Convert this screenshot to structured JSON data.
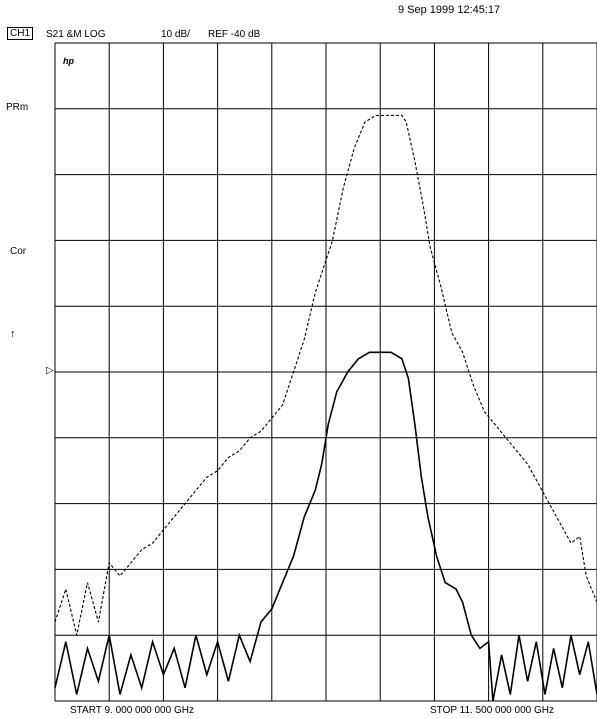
{
  "timestamp": "9 Sep 1999  12:45:17",
  "header": {
    "channel": "CH1",
    "measurement": "S21 &M LOG",
    "scale": "10 dB/",
    "reference": "REF -40 dB"
  },
  "annotations": {
    "logo": "hp",
    "prm": "PRm",
    "cor": "Cor",
    "arrow": "↑",
    "ref_marker": "▷"
  },
  "footer": {
    "start": "START  9. 000  000  000  GHz",
    "stop": "STOP 11. 500  000  000  GHz"
  },
  "chart_data": {
    "type": "line",
    "title": "",
    "xlabel": "",
    "ylabel": "",
    "x_unit": "GHz",
    "xlim": [
      9.0,
      11.5
    ],
    "ylim": [
      -100,
      0
    ],
    "y_reference_db": -40,
    "y_scale_db_per_div": 10,
    "grid": true,
    "divisions": {
      "x": 10,
      "y": 10
    },
    "series": [
      {
        "style": "dashed",
        "points": [
          [
            9.0,
            -88
          ],
          [
            9.05,
            -83
          ],
          [
            9.1,
            -90
          ],
          [
            9.15,
            -82
          ],
          [
            9.2,
            -88
          ],
          [
            9.25,
            -79
          ],
          [
            9.3,
            -81
          ],
          [
            9.35,
            -79
          ],
          [
            9.4,
            -77
          ],
          [
            9.45,
            -76
          ],
          [
            9.5,
            -74
          ],
          [
            9.55,
            -72
          ],
          [
            9.6,
            -70
          ],
          [
            9.65,
            -68
          ],
          [
            9.7,
            -66
          ],
          [
            9.75,
            -65
          ],
          [
            9.8,
            -63
          ],
          [
            9.85,
            -62
          ],
          [
            9.9,
            -60
          ],
          [
            9.95,
            -59
          ],
          [
            10.0,
            -57
          ],
          [
            10.05,
            -55
          ],
          [
            10.1,
            -50
          ],
          [
            10.15,
            -45
          ],
          [
            10.2,
            -38
          ],
          [
            10.25,
            -33
          ],
          [
            10.28,
            -30
          ],
          [
            10.33,
            -22
          ],
          [
            10.38,
            -16
          ],
          [
            10.43,
            -12
          ],
          [
            10.48,
            -11
          ],
          [
            10.55,
            -11
          ],
          [
            10.6,
            -11
          ],
          [
            10.62,
            -12
          ],
          [
            10.66,
            -18
          ],
          [
            10.7,
            -25
          ],
          [
            10.73,
            -31
          ],
          [
            10.78,
            -37
          ],
          [
            10.83,
            -44
          ],
          [
            10.88,
            -47
          ],
          [
            10.93,
            -52
          ],
          [
            10.98,
            -56
          ],
          [
            11.03,
            -58
          ],
          [
            11.08,
            -60
          ],
          [
            11.13,
            -62
          ],
          [
            11.18,
            -64
          ],
          [
            11.23,
            -67
          ],
          [
            11.28,
            -70
          ],
          [
            11.33,
            -73
          ],
          [
            11.38,
            -76
          ],
          [
            11.42,
            -75
          ],
          [
            11.45,
            -81
          ],
          [
            11.5,
            -85
          ]
        ]
      },
      {
        "style": "solid",
        "points": [
          [
            9.0,
            -98
          ],
          [
            9.05,
            -91
          ],
          [
            9.1,
            -99
          ],
          [
            9.15,
            -92
          ],
          [
            9.2,
            -97
          ],
          [
            9.25,
            -90
          ],
          [
            9.3,
            -99
          ],
          [
            9.35,
            -93
          ],
          [
            9.4,
            -98
          ],
          [
            9.45,
            -91
          ],
          [
            9.5,
            -96
          ],
          [
            9.55,
            -92
          ],
          [
            9.6,
            -98
          ],
          [
            9.65,
            -90
          ],
          [
            9.7,
            -96
          ],
          [
            9.75,
            -91
          ],
          [
            9.8,
            -97
          ],
          [
            9.85,
            -90
          ],
          [
            9.9,
            -94
          ],
          [
            9.95,
            -88
          ],
          [
            10.0,
            -86
          ],
          [
            10.05,
            -82
          ],
          [
            10.1,
            -78
          ],
          [
            10.15,
            -72
          ],
          [
            10.2,
            -68
          ],
          [
            10.23,
            -64
          ],
          [
            10.26,
            -58
          ],
          [
            10.3,
            -53
          ],
          [
            10.35,
            -50
          ],
          [
            10.4,
            -48
          ],
          [
            10.45,
            -47
          ],
          [
            10.5,
            -47
          ],
          [
            10.55,
            -47
          ],
          [
            10.6,
            -48
          ],
          [
            10.63,
            -51
          ],
          [
            10.66,
            -58
          ],
          [
            10.69,
            -66
          ],
          [
            10.72,
            -72
          ],
          [
            10.76,
            -78
          ],
          [
            10.8,
            -82
          ],
          [
            10.85,
            -83
          ],
          [
            10.88,
            -85
          ],
          [
            10.92,
            -90
          ],
          [
            10.96,
            -92
          ],
          [
            11.0,
            -91
          ],
          [
            11.02,
            -100
          ],
          [
            11.06,
            -93
          ],
          [
            11.1,
            -99
          ],
          [
            11.14,
            -90
          ],
          [
            11.18,
            -97
          ],
          [
            11.22,
            -91
          ],
          [
            11.26,
            -99
          ],
          [
            11.3,
            -92
          ],
          [
            11.34,
            -98
          ],
          [
            11.38,
            -90
          ],
          [
            11.42,
            -96
          ],
          [
            11.46,
            -91
          ],
          [
            11.5,
            -99
          ]
        ]
      }
    ]
  }
}
